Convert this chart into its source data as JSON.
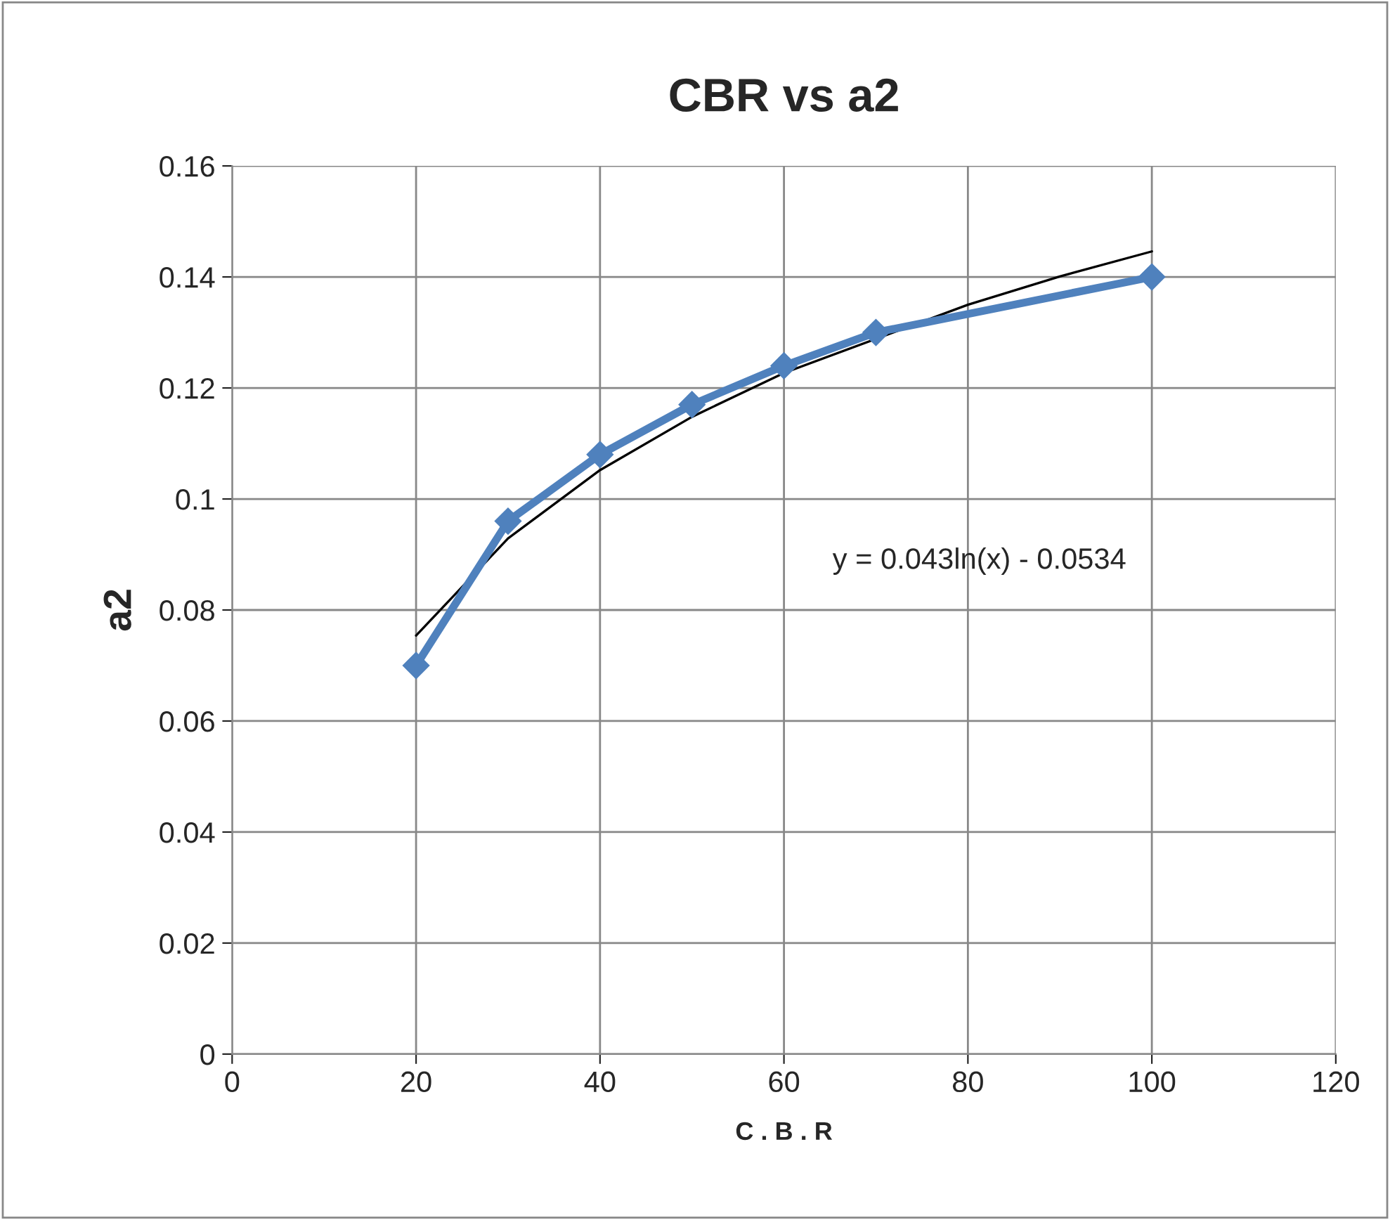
{
  "chart_data": {
    "type": "line",
    "title": "CBR vs a2",
    "xlabel": "C . B . R",
    "ylabel": "a2",
    "x": [
      20,
      30,
      40,
      50,
      60,
      70,
      100
    ],
    "series": [
      {
        "color": "#4f81bd",
        "values": [
          0.07,
          0.096,
          0.108,
          0.117,
          0.124,
          0.13,
          0.14
        ],
        "marker": "diamond"
      },
      {
        "type": "line",
        "color": "#000000",
        "x": [
          20,
          30,
          40,
          50,
          60,
          80,
          90,
          100
        ],
        "values": [
          0.0754,
          0.0929,
          0.1052,
          0.1148,
          0.1227,
          0.135,
          0.1401,
          0.1446
        ],
        "marker": "none"
      }
    ],
    "annotations": [
      "y = 0.043ln(x) - 0.0534"
    ],
    "xlim": [
      0,
      120
    ],
    "xticks": [
      0,
      20,
      40,
      60,
      80,
      100,
      120
    ],
    "ylim": [
      0,
      0.16
    ],
    "yticks": [
      0,
      0.02,
      0.04,
      0.06,
      0.08,
      0.1,
      0.12,
      0.14,
      0.16
    ],
    "grid": true,
    "legend": false,
    "line_style": "solid"
  }
}
